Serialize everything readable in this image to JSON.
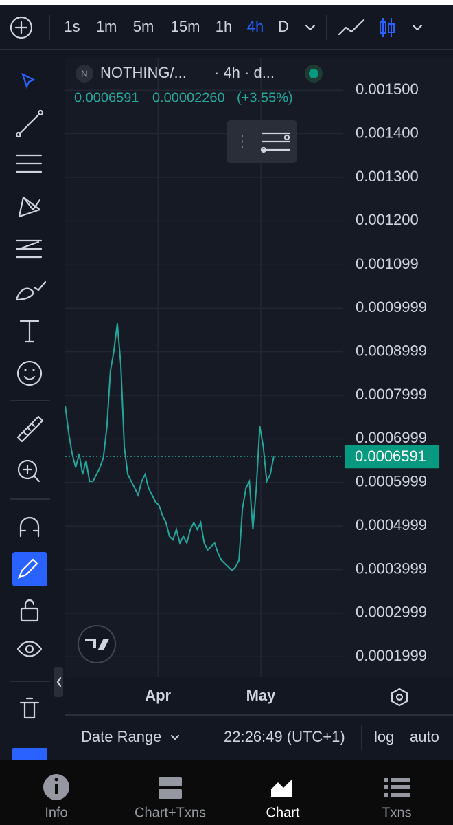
{
  "toolbar": {
    "intervals": [
      "1s",
      "1m",
      "5m",
      "15m",
      "1h",
      "4h",
      "D"
    ],
    "active": "4h"
  },
  "legend": {
    "badge": "N",
    "symbol": "NOTHING/...",
    "meta": "· 4h · d...",
    "close": "0.0006591",
    "change": "0.00002260",
    "change_pct": "(+3.55%)"
  },
  "chart_data": {
    "type": "line",
    "color": "#26a69a",
    "grid": true,
    "x": [
      0,
      1,
      2,
      3,
      4,
      5,
      6,
      7,
      8,
      9,
      10,
      11,
      12,
      13,
      14,
      15,
      16,
      17,
      18,
      19,
      20,
      21,
      22,
      23,
      24,
      25,
      26,
      27,
      28,
      29,
      30,
      31,
      32,
      33,
      34,
      35,
      36,
      37,
      38,
      39,
      40,
      41,
      42,
      43,
      44,
      45,
      46,
      47,
      48,
      49,
      50,
      51,
      52,
      53,
      54,
      55,
      56,
      57,
      58,
      59,
      60
    ],
    "values": [
      0.000776,
      0.0007129,
      0.0006656,
      0.0006341,
      0.0006656,
      0.0006183,
      0.0006498,
      0.0006025,
      0.0006025,
      0.0006183,
      0.0006341,
      0.0006577,
      0.0007287,
      0.0008549,
      0.0009022,
      0.0009653,
      0.0008707,
      0.0006814,
      0.0006183,
      0.0006025,
      0.0005867,
      0.000571,
      0.0006025,
      0.0006183,
      0.0005867,
      0.000571,
      0.0005552,
      0.0005473,
      0.0005236,
      0.0005079,
      0.0004763,
      0.0004684,
      0.0004921,
      0.0004606,
      0.0004763,
      0.0004606,
      0.0004921,
      0.0005079,
      0.0004921,
      0.0005079,
      0.0004606,
      0.0004448,
      0.0004527,
      0.0004606,
      0.0004369,
      0.0004211,
      0.0004132,
      0.0004054,
      0.0003975,
      0.0004054,
      0.0004211,
      0.0005394,
      0.0005867,
      0.0006025,
      0.0004921,
      0.0005867,
      0.0007287,
      0.0006814,
      0.0006025,
      0.0006183,
      0.0006591
    ],
    "xlim": [
      0,
      80
    ],
    "xticks": [
      {
        "value": 26.7,
        "label": "Apr"
      },
      {
        "value": 56.3,
        "label": "May"
      }
    ],
    "ylim": [
      0.000153,
      0.001573
    ],
    "yticks": [
      {
        "value": 0.0015,
        "label": "0.001500"
      },
      {
        "value": 0.0014,
        "label": "0.001400"
      },
      {
        "value": 0.0013,
        "label": "0.001300"
      },
      {
        "value": 0.0012,
        "label": "0.001200"
      },
      0.001099,
      0.0009999,
      0.0008999,
      0.0007999,
      0.0006999,
      0.0005999,
      0.0004999,
      0.0003999,
      0.0002999,
      0.0001999
    ],
    "price_line": 0.0006591
  },
  "bottom_bar": {
    "range": "Date Range",
    "time": "22:26:49 (UTC+1)",
    "log": "log",
    "auto": "auto"
  },
  "nav": [
    "Info",
    "Chart+Txns",
    "Chart",
    "Txns"
  ]
}
